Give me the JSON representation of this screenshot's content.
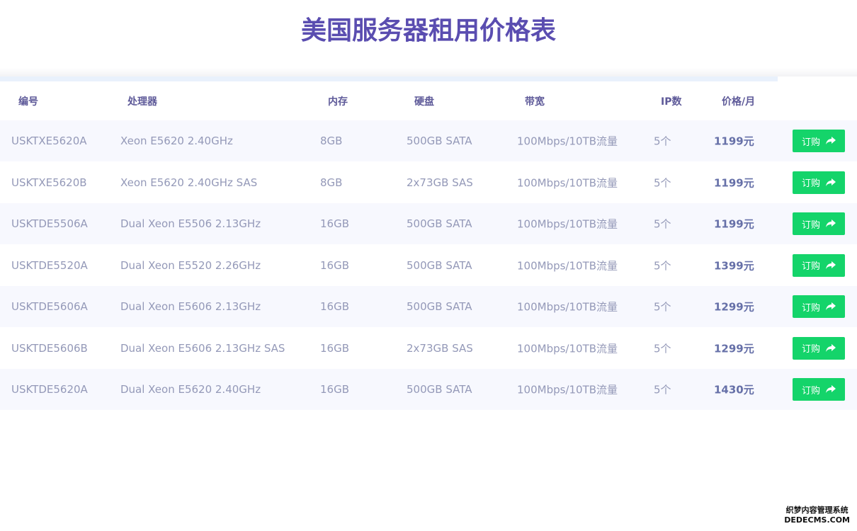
{
  "title": "美国服务器租用价格表",
  "headers": [
    "编号",
    "处理器",
    "内存",
    "硬盘",
    "带宽",
    "IP数",
    "价格/月"
  ],
  "order_label": "订购",
  "rows": [
    [
      "USKTXE5620A",
      "Xeon E5620 2.40GHz",
      "8GB",
      "500GB SATA",
      "100Mbps/10TB流量",
      "5个",
      "1199元"
    ],
    [
      "USKTXE5620B",
      "Xeon E5620 2.40GHz SAS",
      "8GB",
      "2x73GB SAS",
      "100Mbps/10TB流量",
      "5个",
      "1199元"
    ],
    [
      "USKTDE5506A",
      "Dual Xeon E5506 2.13GHz",
      "16GB",
      "500GB SATA",
      "100Mbps/10TB流量",
      "5个",
      "1199元"
    ],
    [
      "USKTDE5520A",
      "Dual Xeon E5520 2.26GHz",
      "16GB",
      "500GB SATA",
      "100Mbps/10TB流量",
      "5个",
      "1399元"
    ],
    [
      "USKTDE5606A",
      "Dual Xeon E5606 2.13GHz",
      "16GB",
      "500GB SATA",
      "100Mbps/10TB流量",
      "5个",
      "1299元"
    ],
    [
      "USKTDE5606B",
      "Dual Xeon E5606 2.13GHz SAS",
      "16GB",
      "2x73GB SAS",
      "100Mbps/10TB流量",
      "5个",
      "1299元"
    ],
    [
      "USKTDE5620A",
      "Dual Xeon E5620 2.40GHz",
      "16GB",
      "500GB SATA",
      "100Mbps/10TB流量",
      "5个",
      "1430元"
    ]
  ],
  "watermark": {
    "line1": "织梦内容管理系统",
    "line2": "DEDECMS.COM"
  },
  "colors": {
    "title": "#5a4db0",
    "button": "#14d46a"
  }
}
